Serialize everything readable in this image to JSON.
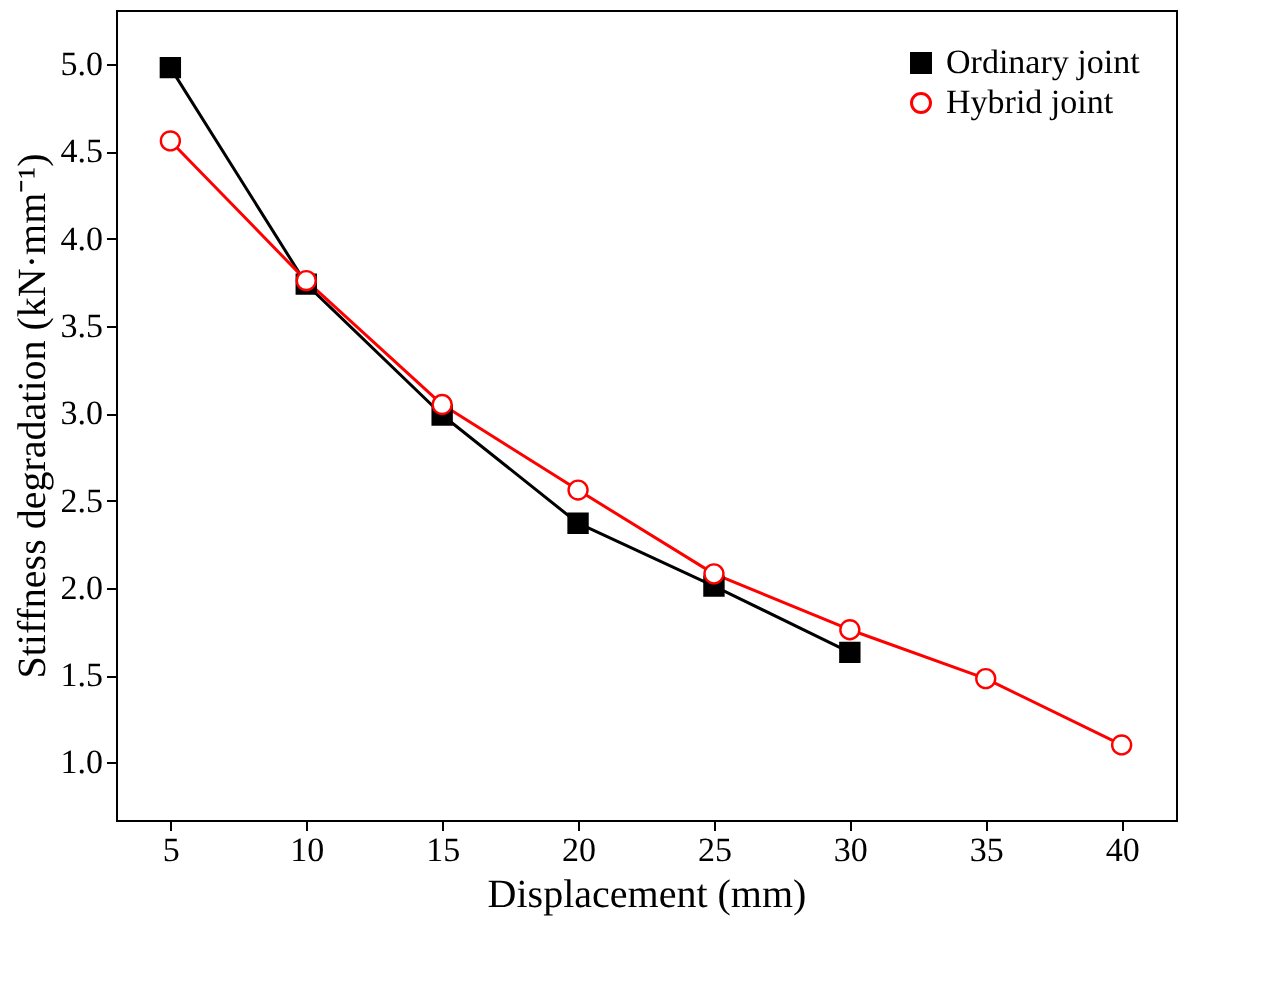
{
  "chart_data": {
    "type": "line",
    "xlabel": "Displacement (mm)",
    "ylabel": "Stiffness degradation (kN·mm⁻¹)",
    "x": [
      5,
      10,
      15,
      20,
      25,
      30,
      35,
      40
    ],
    "series": [
      {
        "name": "Ordinary joint",
        "color": "#000000",
        "marker": "square",
        "values": [
          4.98,
          3.74,
          2.99,
          2.37,
          2.01,
          1.63,
          null,
          null
        ]
      },
      {
        "name": "Hybrid joint",
        "color": "#ff0000",
        "marker": "circle",
        "values": [
          4.56,
          3.76,
          3.05,
          2.56,
          2.08,
          1.76,
          1.48,
          1.1
        ]
      }
    ],
    "xlim": [
      3,
      42
    ],
    "xticks": [
      5,
      10,
      15,
      20,
      25,
      30,
      35,
      40
    ],
    "ylim": [
      0.67,
      5.31
    ],
    "yticks": [
      {
        "value": 1,
        "label": "1.0"
      },
      1.5,
      {
        "value": 2,
        "label": "2.0"
      },
      2.5,
      {
        "value": 3,
        "label": "3.0"
      },
      3.5,
      {
        "value": 4,
        "label": "4.0"
      },
      4.5,
      {
        "value": 5,
        "label": "5.0"
      }
    ],
    "grid": false,
    "legend": "top right",
    "line_style": "solid"
  }
}
